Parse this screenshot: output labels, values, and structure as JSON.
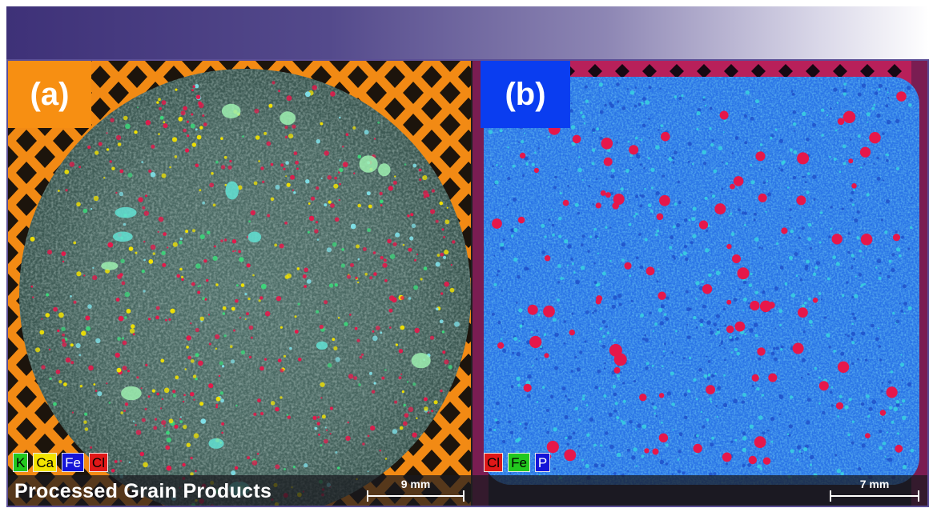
{
  "panel_a": {
    "label": "(a)",
    "label_color": "#f78f12",
    "legend": [
      {
        "text": "K",
        "bg": "#22c81e",
        "fg": "#000000"
      },
      {
        "text": "Ca",
        "bg": "#f3e400",
        "fg": "#000000"
      },
      {
        "text": "Fe",
        "bg": "#1414d8",
        "fg": "#ffffff"
      },
      {
        "text": "Cl",
        "bg": "#e01818",
        "fg": "#000000"
      }
    ],
    "caption": "Processed Grain Products",
    "scale": "9 mm"
  },
  "panel_b": {
    "label": "(b)",
    "label_color": "#0a3df0",
    "legend": [
      {
        "text": "Cl",
        "bg": "#e01818",
        "fg": "#000000"
      },
      {
        "text": "Fe",
        "bg": "#22c81e",
        "fg": "#000000"
      },
      {
        "text": "P",
        "bg": "#1414d8",
        "fg": "#ffffff"
      }
    ],
    "scale": "7 mm"
  },
  "colors": {
    "banner_start": "#3e3178",
    "frame_border": "#5b4f96",
    "substrate_orange": "#f28a14",
    "sample_a": "#4b6a64",
    "sample_b": "#2a74e6",
    "particle_red": "#e6174a"
  }
}
